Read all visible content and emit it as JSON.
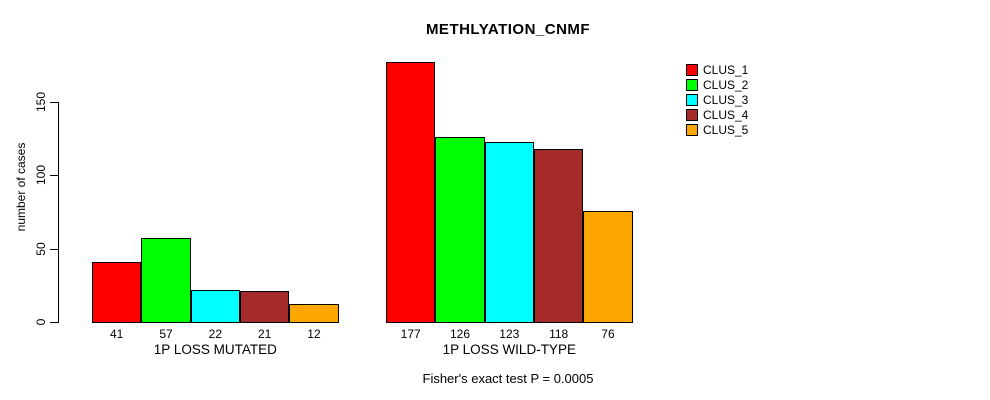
{
  "title": "METHLYATION_CNMF",
  "annotation": "Fisher's exact test P = 0.0005",
  "y_axis": {
    "label": "number of cases",
    "ticks": [
      0,
      50,
      100,
      150
    ]
  },
  "legend": {
    "position": "right",
    "items": [
      {
        "label": "CLUS_1",
        "color": "#FF0000"
      },
      {
        "label": "CLUS_2",
        "color": "#00FF00"
      },
      {
        "label": "CLUS_3",
        "color": "#00FFFF"
      },
      {
        "label": "CLUS_4",
        "color": "#A52A2A"
      },
      {
        "label": "CLUS_5",
        "color": "#FFA500"
      }
    ]
  },
  "chart_data": {
    "type": "bar",
    "title": "METHLYATION_CNMF",
    "xlabel": "",
    "ylabel": "number of cases",
    "ylim": [
      0,
      187
    ],
    "yticks": [
      0,
      50,
      100,
      150
    ],
    "grid": false,
    "legend_position": "right",
    "categories": [
      "1P LOSS MUTATED",
      "1P LOSS WILD-TYPE"
    ],
    "series": [
      {
        "name": "CLUS_1",
        "color": "#FF0000",
        "values": [
          41,
          177
        ]
      },
      {
        "name": "CLUS_2",
        "color": "#00FF00",
        "values": [
          57,
          126
        ]
      },
      {
        "name": "CLUS_3",
        "color": "#00FFFF",
        "values": [
          22,
          123
        ]
      },
      {
        "name": "CLUS_4",
        "color": "#A52A2A",
        "values": [
          21,
          118
        ]
      },
      {
        "name": "CLUS_5",
        "color": "#FFA500",
        "values": [
          12,
          76
        ]
      }
    ],
    "bar_value_labels": [
      [
        41,
        57,
        22,
        21,
        12
      ],
      [
        177,
        126,
        123,
        118,
        76
      ]
    ],
    "annotation": "Fisher's exact test P = 0.0005"
  }
}
